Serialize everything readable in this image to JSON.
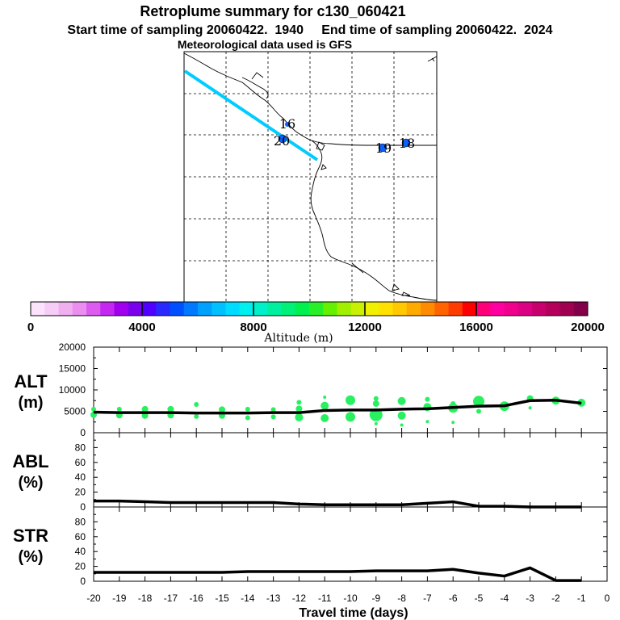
{
  "header": {
    "title": "Retroplume summary for c130_060421",
    "sampling_line": "Start time of sampling 20060422.  1940     End time of sampling 20060422.  2024",
    "met_line": "Meteorological data used is GFS"
  },
  "map": {
    "point_labels": [
      "16",
      "20",
      "19",
      "18"
    ]
  },
  "colorbar": {
    "tick_labels": [
      "0",
      "4000",
      "8000",
      "12000",
      "16000",
      "20000"
    ],
    "axis_label": "Altitude (m)",
    "colors": [
      "#fbe3fb",
      "#f6cdf6",
      "#f0b0f0",
      "#ea8ef0",
      "#dd5cf0",
      "#c428f0",
      "#a000ee",
      "#7a00ee",
      "#5000ff",
      "#2828ff",
      "#0050ff",
      "#0078ff",
      "#00a0ff",
      "#00c0ff",
      "#00dcff",
      "#00f0f0",
      "#00f0c8",
      "#00f0a0",
      "#00f078",
      "#00f050",
      "#28f028",
      "#64f000",
      "#a0f000",
      "#c8f000",
      "#f0f000",
      "#ffe000",
      "#ffc800",
      "#ffaa00",
      "#ff8c00",
      "#ff6400",
      "#ff3c00",
      "#ff0000",
      "#ff0078",
      "#ff00a0",
      "#f0008c",
      "#dc0082",
      "#c8006e",
      "#b4005a",
      "#a00050",
      "#82004a"
    ]
  },
  "chart_data": [
    {
      "type": "line",
      "panel": "ALT",
      "ylabel": "ALT\n(m)",
      "ylabel_line1": "ALT",
      "ylabel_line2": "(m)",
      "ylim": [
        0,
        20000
      ],
      "yticks": [
        "0",
        "5000",
        "10000",
        "15000",
        "20000"
      ],
      "xlim": [
        -20,
        0
      ],
      "x": [
        -20,
        -19,
        -18,
        -17,
        -16,
        -15,
        -14,
        -13,
        -12,
        -11,
        -10,
        -9,
        -8,
        -7,
        -6,
        -5,
        -4,
        -3,
        -2,
        -1
      ],
      "values": [
        4800,
        4700,
        4700,
        4700,
        4600,
        4600,
        4600,
        4700,
        4700,
        5200,
        5300,
        5300,
        5500,
        5600,
        5900,
        6200,
        6300,
        7500,
        7600,
        6900
      ],
      "scatter_color": "#28f060",
      "scatter_points": [
        {
          "x": -20,
          "y": 4200,
          "r": 4
        },
        {
          "x": -20,
          "y": 5500,
          "r": 3
        },
        {
          "x": -19,
          "y": 4100,
          "r": 4
        },
        {
          "x": -19,
          "y": 5500,
          "r": 3
        },
        {
          "x": -18,
          "y": 4000,
          "r": 4
        },
        {
          "x": -18,
          "y": 5500,
          "r": 4
        },
        {
          "x": -17,
          "y": 4100,
          "r": 4
        },
        {
          "x": -17,
          "y": 5500,
          "r": 4
        },
        {
          "x": -16,
          "y": 6600,
          "r": 3
        },
        {
          "x": -16,
          "y": 3800,
          "r": 3
        },
        {
          "x": -15,
          "y": 4000,
          "r": 4
        },
        {
          "x": -15,
          "y": 5400,
          "r": 4
        },
        {
          "x": -14,
          "y": 3500,
          "r": 3
        },
        {
          "x": -14,
          "y": 5500,
          "r": 3
        },
        {
          "x": -13,
          "y": 5400,
          "r": 3
        },
        {
          "x": -13,
          "y": 3700,
          "r": 3
        },
        {
          "x": -12,
          "y": 7100,
          "r": 3
        },
        {
          "x": -12,
          "y": 5600,
          "r": 4
        },
        {
          "x": -12,
          "y": 3600,
          "r": 5
        },
        {
          "x": -11,
          "y": 8300,
          "r": 2
        },
        {
          "x": -11,
          "y": 6300,
          "r": 5
        },
        {
          "x": -11,
          "y": 3400,
          "r": 5
        },
        {
          "x": -10,
          "y": 7600,
          "r": 6
        },
        {
          "x": -10,
          "y": 3700,
          "r": 6
        },
        {
          "x": -9,
          "y": 8000,
          "r": 3
        },
        {
          "x": -9,
          "y": 6800,
          "r": 4
        },
        {
          "x": -9,
          "y": 4200,
          "r": 8
        },
        {
          "x": -9,
          "y": 2100,
          "r": 2
        },
        {
          "x": -8,
          "y": 7400,
          "r": 5
        },
        {
          "x": -8,
          "y": 4000,
          "r": 5
        },
        {
          "x": -8,
          "y": 1800,
          "r": 2
        },
        {
          "x": -7,
          "y": 7800,
          "r": 3
        },
        {
          "x": -7,
          "y": 6000,
          "r": 5
        },
        {
          "x": -7,
          "y": 2600,
          "r": 2
        },
        {
          "x": -6,
          "y": 6800,
          "r": 3
        },
        {
          "x": -6,
          "y": 5800,
          "r": 6
        },
        {
          "x": -6,
          "y": 2400,
          "r": 2
        },
        {
          "x": -5,
          "y": 7300,
          "r": 7
        },
        {
          "x": -5,
          "y": 5000,
          "r": 3
        },
        {
          "x": -4,
          "y": 6200,
          "r": 6
        },
        {
          "x": -3,
          "y": 8000,
          "r": 4
        },
        {
          "x": -3,
          "y": 5800,
          "r": 2
        },
        {
          "x": -2,
          "y": 7500,
          "r": 5
        },
        {
          "x": -1,
          "y": 7000,
          "r": 5
        }
      ]
    },
    {
      "type": "line",
      "panel": "ABL",
      "ylabel": "ABL\n(%)",
      "ylabel_line1": "ABL",
      "ylabel_line2": "(%)",
      "ylim": [
        0,
        100
      ],
      "yticks": [
        "0",
        "20",
        "40",
        "60",
        "80"
      ],
      "xlim": [
        -20,
        0
      ],
      "x": [
        -20,
        -19,
        -18,
        -17,
        -16,
        -15,
        -14,
        -13,
        -12,
        -11,
        -10,
        -9,
        -8,
        -7,
        -6,
        -5,
        -4,
        -3,
        -2,
        -1
      ],
      "values": [
        8,
        8,
        7,
        6,
        6,
        6,
        6,
        6,
        4,
        3,
        3,
        3,
        3,
        5,
        7,
        1,
        1,
        0,
        0,
        0
      ]
    },
    {
      "type": "line",
      "panel": "STR",
      "ylabel": "STR\n(%)",
      "ylabel_line1": "STR",
      "ylabel_line2": "(%)",
      "ylim": [
        0,
        100
      ],
      "yticks": [
        "0",
        "20",
        "40",
        "60",
        "80"
      ],
      "xlim": [
        -20,
        0
      ],
      "x": [
        -20,
        -19,
        -18,
        -17,
        -16,
        -15,
        -14,
        -13,
        -12,
        -11,
        -10,
        -9,
        -8,
        -7,
        -6,
        -5,
        -4,
        -3,
        -2,
        -1
      ],
      "values": [
        12,
        12,
        12,
        12,
        12,
        12,
        13,
        13,
        13,
        13,
        13,
        14,
        14,
        14,
        16,
        11,
        7,
        18,
        1,
        1
      ]
    }
  ],
  "xaxis": {
    "tick_labels": [
      "-20",
      "-19",
      "-18",
      "-17",
      "-16",
      "-15",
      "-14",
      "-13",
      "-12",
      "-11",
      "-10",
      "-9",
      "-8",
      "-7",
      "-6",
      "-5",
      "-4",
      "-3",
      "-2",
      "-1",
      "0"
    ],
    "label": "Travel time (days)"
  }
}
